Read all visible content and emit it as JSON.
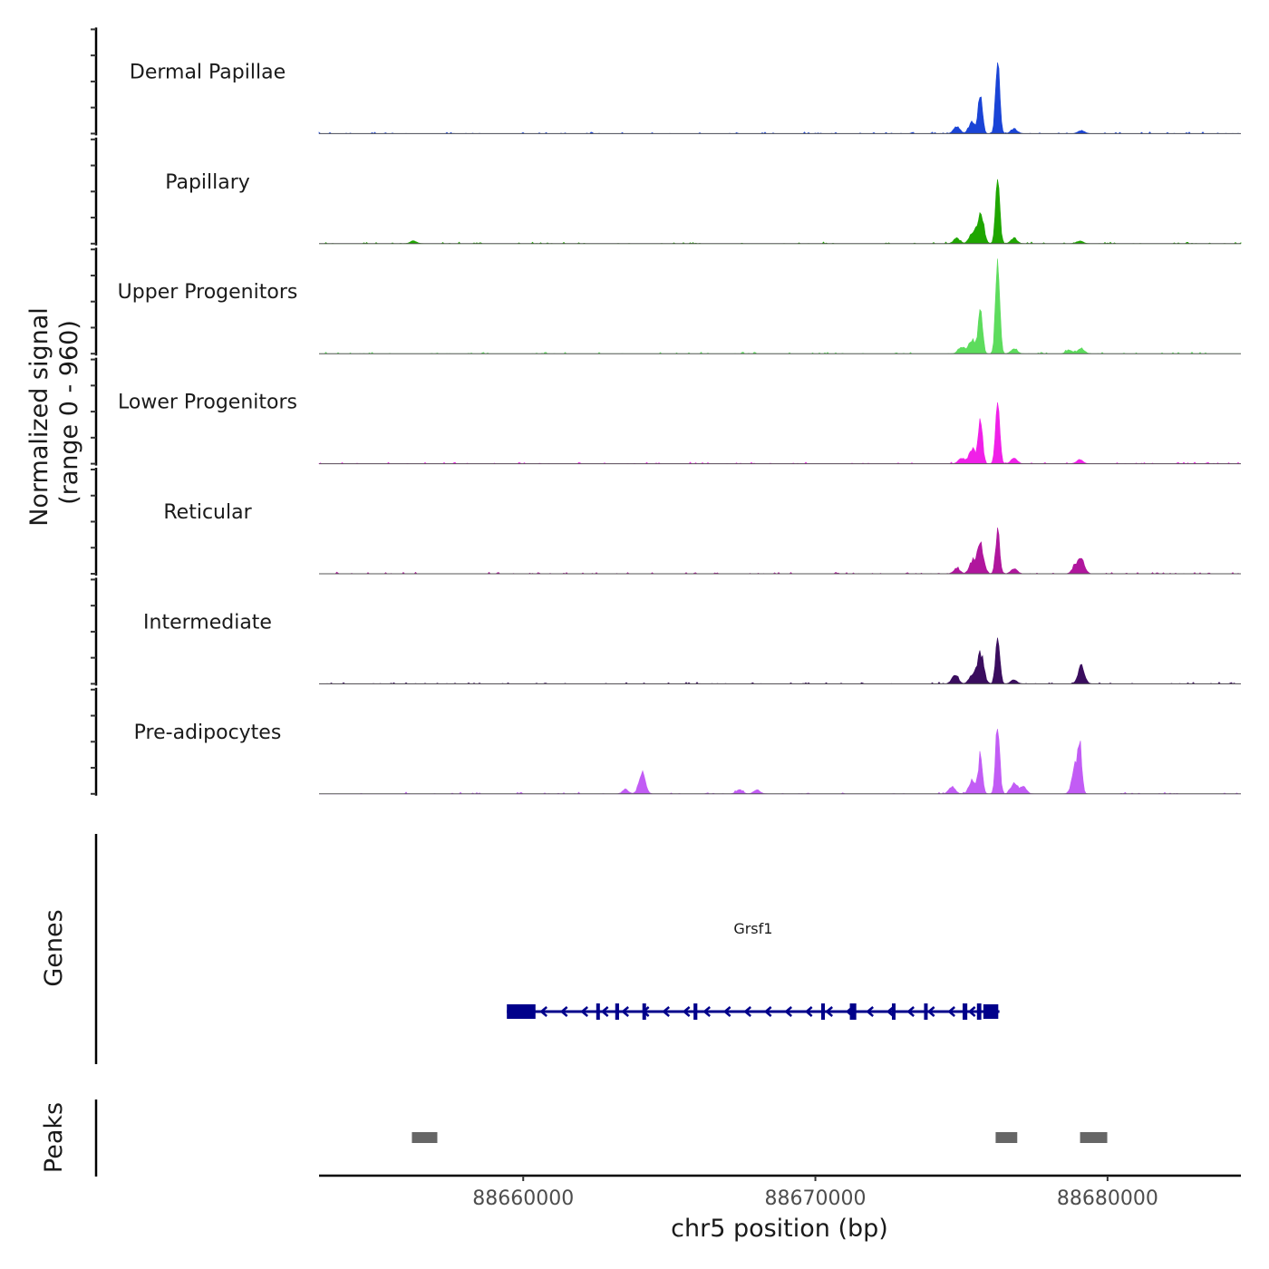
{
  "chart_data": {
    "type": "area",
    "title": "",
    "ylabel": "Normalized signal",
    "ylabel_range": "(range 0 - 960)",
    "ylim": [
      0,
      960
    ],
    "xlabel": "chr5 position (bp)",
    "xlim": [
      88653012,
      88684565
    ],
    "x_ticks": [
      88660000,
      88670000,
      88680000
    ],
    "x_tick_labels": [
      "88660000",
      "88670000",
      "88680000"
    ],
    "tracks": [
      {
        "name": "Dermal Papillae",
        "color": "#1a44d6",
        "peaks": [
          [
            88676240,
            650
          ],
          [
            88675650,
            370
          ],
          [
            88675370,
            115
          ],
          [
            88674840,
            65
          ],
          [
            88676800,
            45
          ],
          [
            88679100,
            30
          ]
        ]
      },
      {
        "name": "Papillary",
        "color": "#1fa600",
        "peaks": [
          [
            88676240,
            620
          ],
          [
            88675650,
            275
          ],
          [
            88675370,
            85
          ],
          [
            88674840,
            50
          ],
          [
            88676800,
            50
          ],
          [
            88679050,
            25
          ],
          [
            88656240,
            25
          ]
        ]
      },
      {
        "name": "Upper Progenitors",
        "color": "#5ddc5d",
        "peaks": [
          [
            88676240,
            890
          ],
          [
            88675650,
            435
          ],
          [
            88675370,
            135
          ],
          [
            88675000,
            65
          ],
          [
            88676800,
            40
          ],
          [
            88679100,
            50
          ],
          [
            88678700,
            35
          ]
        ]
      },
      {
        "name": "Lower Progenitors",
        "color": "#f020e8",
        "peaks": [
          [
            88676240,
            620
          ],
          [
            88675650,
            425
          ],
          [
            88675370,
            140
          ],
          [
            88675000,
            50
          ],
          [
            88676800,
            50
          ],
          [
            88679050,
            40
          ]
        ]
      },
      {
        "name": "Reticular",
        "color": "#b0169d",
        "peaks": [
          [
            88676240,
            385
          ],
          [
            88675650,
            260
          ],
          [
            88675370,
            100
          ],
          [
            88674840,
            50
          ],
          [
            88676800,
            50
          ],
          [
            88679100,
            135
          ],
          [
            88678900,
            65
          ]
        ]
      },
      {
        "name": "Intermediate",
        "color": "#3a0d5e",
        "peaks": [
          [
            88676240,
            490
          ],
          [
            88675650,
            285
          ],
          [
            88675370,
            85
          ],
          [
            88674780,
            85
          ],
          [
            88676800,
            35
          ],
          [
            88679100,
            165
          ]
        ]
      },
      {
        "name": "Pre-adipocytes",
        "color": "#c25cf5",
        "peaks": [
          [
            88676240,
            625
          ],
          [
            88675650,
            360
          ],
          [
            88675370,
            125
          ],
          [
            88674680,
            65
          ],
          [
            88676800,
            100
          ],
          [
            88677110,
            65
          ],
          [
            88679050,
            375
          ],
          [
            88678900,
            250
          ],
          [
            88664070,
            190
          ],
          [
            88663500,
            35
          ],
          [
            88667400,
            40
          ],
          [
            88668000,
            35
          ]
        ]
      }
    ],
    "genes_label": "Genes",
    "gene": {
      "name": "Grsf1",
      "strand": "-",
      "start": 88659440,
      "end": 88676300,
      "color": "#00008b",
      "exons": [
        [
          88659440,
          88660420
        ],
        [
          88662500,
          88662580
        ],
        [
          88663150,
          88663280
        ],
        [
          88664080,
          88664160
        ],
        [
          88665830,
          88665960
        ],
        [
          88670200,
          88670300
        ],
        [
          88671180,
          88671400
        ],
        [
          88672620,
          88672740
        ],
        [
          88673720,
          88673820
        ],
        [
          88675040,
          88675200
        ],
        [
          88675530,
          88675680
        ],
        [
          88675750,
          88676260
        ]
      ]
    },
    "peaks_label": "Peaks",
    "peak_regions": [
      [
        88656190,
        88657060
      ],
      [
        88676170,
        88676910
      ],
      [
        88679060,
        88679990
      ]
    ],
    "peak_color": "#666666"
  }
}
